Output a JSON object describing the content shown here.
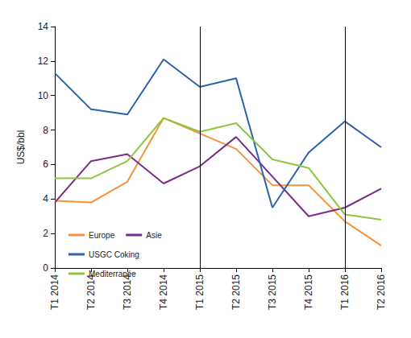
{
  "chart_data": {
    "type": "line",
    "y_label": "US$/bbl",
    "categories": [
      "T1 2014",
      "T2 2014",
      "T3 2014",
      "T4 2014",
      "T1 2015",
      "T2 2015",
      "T3 2015",
      "T4 2015",
      "T1 2016",
      "T2 2016"
    ],
    "series": [
      {
        "name": "Europe",
        "color": "#f5923e",
        "values": [
          3.9,
          3.8,
          5.0,
          8.7,
          7.8,
          6.9,
          4.8,
          4.8,
          2.7,
          1.3
        ]
      },
      {
        "name": "Asie",
        "color": "#7a2b8b",
        "values": [
          3.8,
          6.2,
          6.6,
          4.9,
          5.9,
          7.6,
          5.3,
          3.0,
          3.5,
          4.6
        ]
      },
      {
        "name": "USGC Coking",
        "color": "#2b62ad",
        "values": [
          11.3,
          9.2,
          8.9,
          12.1,
          10.5,
          11.0,
          3.5,
          6.7,
          8.5,
          7.0
        ]
      },
      {
        "name": "Mediterranée",
        "color": "#8cc63f",
        "values": [
          5.2,
          5.2,
          6.2,
          8.7,
          7.9,
          8.4,
          6.3,
          5.8,
          3.1,
          2.8
        ]
      }
    ],
    "vlines": [
      "T1 2015",
      "T1 2016"
    ],
    "ylim": [
      0,
      14
    ],
    "yticks": [
      0,
      2,
      4,
      6,
      8,
      10,
      12,
      14
    ],
    "grid": false,
    "legend": "lower left"
  }
}
